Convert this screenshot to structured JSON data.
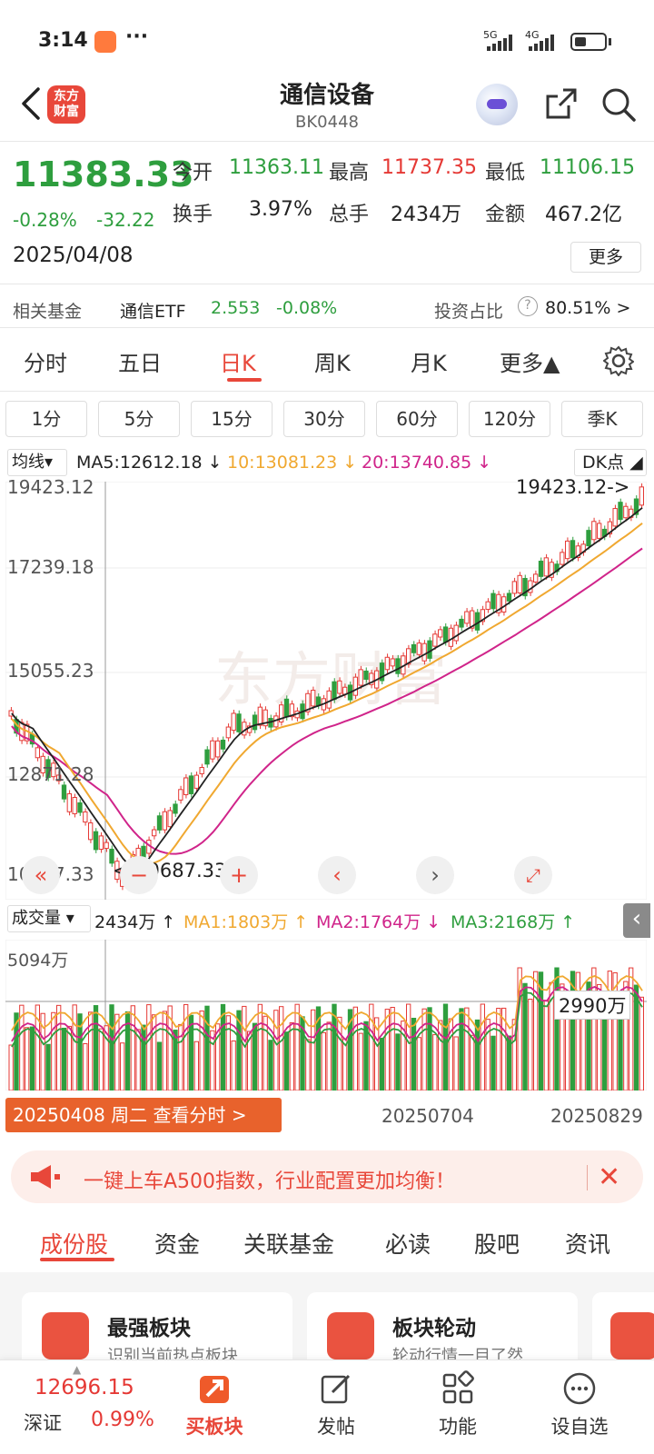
{
  "status": {
    "time": "3:14",
    "dots": "···",
    "net1": "5G",
    "net2": "4G"
  },
  "header": {
    "logo_line1": "东方",
    "logo_line2": "财富",
    "title": "通信设备",
    "code": "BK0448"
  },
  "quote": {
    "price": "11383.33",
    "change_pct": "-0.28%",
    "change_abs": "-32.22",
    "date": "2025/04/08",
    "open_label": "今开",
    "open": "11363.11",
    "high_label": "最高",
    "high": "11737.35",
    "low_label": "最低",
    "low": "11106.15",
    "turnover_label": "换手",
    "turnover": "3.97%",
    "volume_label": "总手",
    "volume": "2434万",
    "amount_label": "金额",
    "amount": "467.2亿",
    "more": "更多"
  },
  "fund": {
    "label": "相关基金",
    "name": "通信ETF",
    "price": "2.553",
    "change": "-0.08%",
    "ratio_label": "投资占比",
    "ratio": "80.51% >"
  },
  "period_tabs": [
    "分时",
    "五日",
    "日K",
    "周K",
    "月K",
    "更多▲"
  ],
  "interval_buttons": [
    "1分",
    "5分",
    "15分",
    "30分",
    "60分",
    "120分",
    "季K"
  ],
  "ma": {
    "select": "均线",
    "ma5": "MA5:12612.18 ↓",
    "ma10": "10:13081.23 ↓",
    "ma20": "20:13740.85 ↓",
    "dk": "DK点"
  },
  "chart_axis": {
    "y1": "19423.12",
    "y2": "17239.18",
    "y3": "15055.23",
    "y4": "12871.28",
    "y5": "10687.33",
    "max_label": "19423.12->",
    "min_label": "<-10687.33",
    "watermark": "东方财富"
  },
  "volume": {
    "select": "成交量",
    "current": "2434万 ↑",
    "ma1": "MA1:1803万 ↑",
    "ma2": "MA2:1764万 ↓",
    "ma3": "MA3:2168万 ↑",
    "ymax": "5094万",
    "cursor_val": "2990万"
  },
  "date_btn": "20250408 周二 查看分时 >",
  "date_labels": {
    "d2": "20250704",
    "d3": "20250829"
  },
  "promo": {
    "text": "一键上车A500指数，行业配置更加均衡！"
  },
  "bottom_tabs": [
    "成份股",
    "资金",
    "关联基金",
    "必读",
    "股吧",
    "资讯"
  ],
  "cards": [
    {
      "title": "最强板块",
      "sub": "识别当前热点板块"
    },
    {
      "title": "板块轮动",
      "sub": "轮动行情一目了然"
    }
  ],
  "bottom_nav": {
    "index_value": "12696.15",
    "index_name": "深证",
    "index_pct": "0.99%",
    "buy": "买板块",
    "post": "发帖",
    "func": "功能",
    "watch": "设自选"
  },
  "colors": {
    "up": "#e53935",
    "down": "#2e9e3e",
    "accent": "#e8473a",
    "ma5": "#222222",
    "ma10": "#f0a830",
    "ma20": "#d0248a"
  }
}
